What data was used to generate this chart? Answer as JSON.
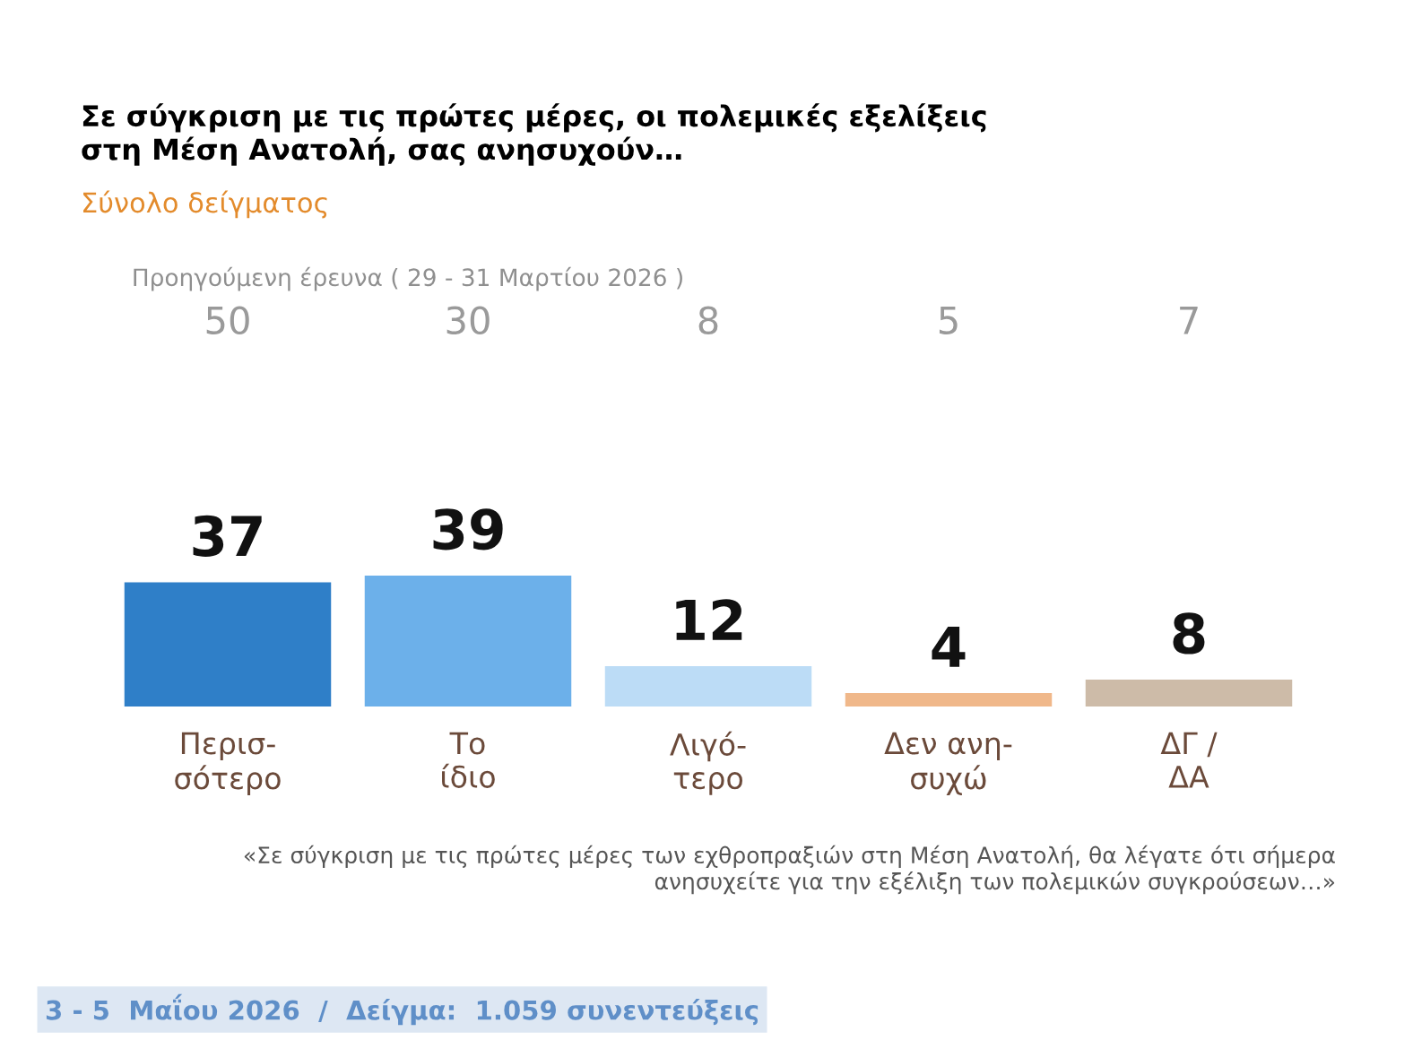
{
  "chart_data": {
    "type": "bar",
    "title": "Σε σύγκριση με τις πρώτες μέρες, οι πολεμικές εξελίξεις\nστη Μέση Ανατολή, σας ανησυχούν…",
    "subtitle": "Σύνολο δείγματος",
    "categories": [
      "Περισ-\nσότερο",
      "Το\nίδιο",
      "Λιγό-\nτερο",
      "Δεν ανη-\nσυχώ",
      "ΔΓ /\nΔΑ"
    ],
    "values": [
      37,
      39,
      12,
      4,
      8
    ],
    "colors": [
      "#2f7fc8",
      "#6cb0ea",
      "#bcdcf6",
      "#f0b88a",
      "#cdbba8"
    ],
    "data_labels": true,
    "annotations": [
      "Προηγούμενη έρευνα ( 29 - 31 Μαρτίου 2026 )",
      "50",
      "30",
      "8",
      "5",
      "7",
      "«Σε σύγκριση με τις πρώτες μέρες των εχθροπραξιών στη Μέση Ανατολή, θα λέγατε ότι σήμερα\nανησυχείτε για την εξέλιξη των πολεμικών συγκρούσεων…»",
      "3 - 5  Μαΐου 2026  /  Δείγμα:  1.059 συνεντεύξεις"
    ],
    "grid": false,
    "legend": false
  }
}
